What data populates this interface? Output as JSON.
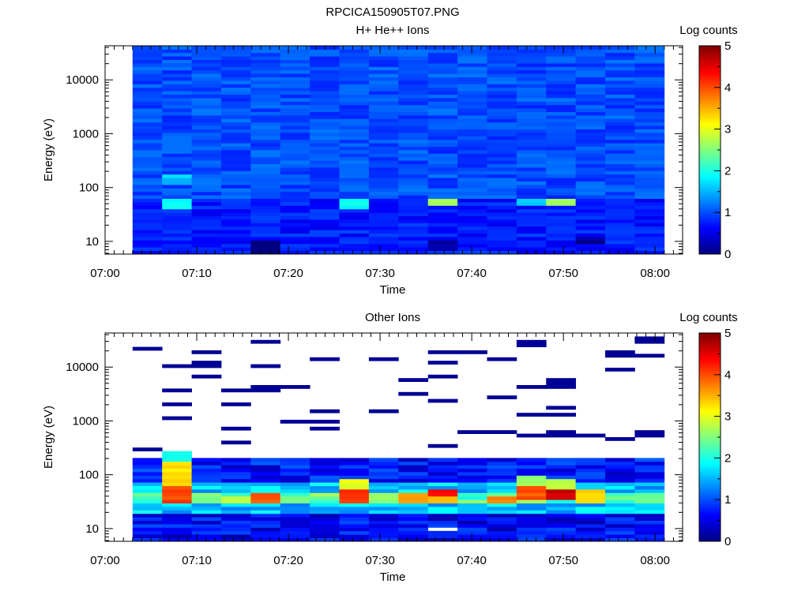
{
  "figure_title": "RPCICA150905T07.PNG",
  "chart_data": [
    {
      "type": "heatmap",
      "title": "H+ He++ Ions",
      "xlabel": "Time",
      "ylabel": "Energy (eV)",
      "x_ticks": [
        "07:00",
        "07:10",
        "07:20",
        "07:30",
        "07:40",
        "07:50",
        "08:00"
      ],
      "x_range": [
        "07:00",
        "08:03"
      ],
      "y_ticks": [
        "10",
        "100",
        "1000",
        "10000"
      ],
      "y_range": [
        5.8,
        43000
      ],
      "y_scale": "log",
      "colorbar": {
        "label": "Log counts",
        "ticks": [
          "0",
          "1",
          "2",
          "3",
          "4",
          "5"
        ],
        "range": [
          0,
          5
        ]
      },
      "data_time_start": "07:03",
      "data_time_end": "08:01",
      "time_columns": 18,
      "energy_bins": 60,
      "base_level": 1.0,
      "noise": 0.22,
      "hotspots": [
        {
          "col": 1,
          "e_min": 40,
          "e_max": 60,
          "value": 1.9
        },
        {
          "col": 1,
          "e_min": 110,
          "e_max": 170,
          "value": 1.6
        },
        {
          "col": 7,
          "e_min": 40,
          "e_max": 58,
          "value": 1.9
        },
        {
          "col": 10,
          "e_min": 45,
          "e_max": 60,
          "value": 2.6
        },
        {
          "col": 14,
          "e_min": 45,
          "e_max": 62,
          "value": 2.8
        },
        {
          "col": 13,
          "e_min": 45,
          "e_max": 60,
          "value": 1.7
        },
        {
          "col": 4,
          "e_min": 6,
          "e_max": 10,
          "value": 0.1
        },
        {
          "col": 15,
          "e_min": 9,
          "e_max": 12,
          "value": 0.1
        },
        {
          "col": 10,
          "e_min": 7,
          "e_max": 10,
          "value": 0.2
        }
      ]
    },
    {
      "type": "heatmap",
      "title": "Other Ions",
      "xlabel": "Time",
      "ylabel": "Energy (eV)",
      "x_ticks": [
        "07:00",
        "07:10",
        "07:20",
        "07:30",
        "07:40",
        "07:50",
        "08:00"
      ],
      "x_range": [
        "07:00",
        "08:03"
      ],
      "y_ticks": [
        "10",
        "100",
        "1000",
        "10000"
      ],
      "y_range": [
        5.8,
        43000
      ],
      "y_scale": "log",
      "colorbar": {
        "label": "Log counts",
        "ticks": [
          "0",
          "1",
          "2",
          "3",
          "4",
          "5"
        ],
        "range": [
          0,
          5
        ]
      },
      "data_time_start": "07:03",
      "data_time_end": "08:01",
      "time_columns": 18,
      "energy_bins": 60,
      "sparse_above_eV": 200,
      "sparse_value": 0.1,
      "sparse_probability": 0.1,
      "low_energy_profile": [
        {
          "e_min": 5.8,
          "e_max": 20,
          "value": 0.6
        },
        {
          "e_min": 20,
          "e_max": 28,
          "value": 1.6
        },
        {
          "e_min": 28,
          "e_max": 45,
          "value": 2.4
        },
        {
          "e_min": 45,
          "e_max": 70,
          "value": 1.6
        },
        {
          "e_min": 70,
          "e_max": 200,
          "value": 0.7
        }
      ],
      "hotspots": [
        {
          "col": 1,
          "e_min": 30,
          "e_max": 60,
          "value": 4.0
        },
        {
          "col": 1,
          "e_min": 60,
          "e_max": 180,
          "value": 3.3
        },
        {
          "col": 1,
          "e_min": 180,
          "e_max": 260,
          "value": 1.9
        },
        {
          "col": 4,
          "e_min": 30,
          "e_max": 48,
          "value": 3.9
        },
        {
          "col": 7,
          "e_min": 30,
          "e_max": 50,
          "value": 4.2
        },
        {
          "col": 7,
          "e_min": 50,
          "e_max": 80,
          "value": 3.0
        },
        {
          "col": 9,
          "e_min": 30,
          "e_max": 45,
          "value": 3.6
        },
        {
          "col": 10,
          "e_min": 38,
          "e_max": 55,
          "value": 4.4
        },
        {
          "col": 10,
          "e_min": 28,
          "e_max": 38,
          "value": 3.4
        },
        {
          "col": 12,
          "e_min": 30,
          "e_max": 42,
          "value": 3.7
        },
        {
          "col": 13,
          "e_min": 35,
          "e_max": 60,
          "value": 4.0
        },
        {
          "col": 13,
          "e_min": 60,
          "e_max": 100,
          "value": 2.6
        },
        {
          "col": 14,
          "e_min": 35,
          "e_max": 55,
          "value": 4.6
        },
        {
          "col": 14,
          "e_min": 55,
          "e_max": 90,
          "value": 2.8
        },
        {
          "col": 15,
          "e_min": 30,
          "e_max": 50,
          "value": 3.3
        },
        {
          "col": 10,
          "e_min": 8.6,
          "e_max": 11.2,
          "value": -1
        }
      ]
    }
  ]
}
